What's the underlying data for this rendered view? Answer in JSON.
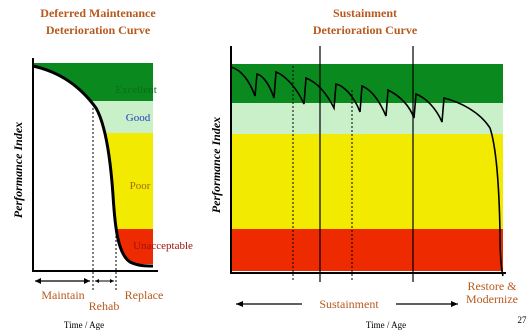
{
  "left": {
    "title_line1": "Deferred Maintenance",
    "title_line2": "Deterioration Curve",
    "yaxis": "Performance Index",
    "zones": {
      "excellent": "Excellent",
      "good": "Good",
      "poor": "Poor",
      "unacceptable": "Unacceptable"
    },
    "bottom": {
      "maintain": "Maintain",
      "rehab": "Rehab",
      "replace": "Replace",
      "time_age": "Time / Age"
    }
  },
  "right": {
    "title_line1": "Sustainment",
    "title_line2": "Deterioration Curve",
    "yaxis": "Performance Index",
    "bottom": {
      "restore_line1": "Restore &",
      "restore_line2": "Modernize",
      "sustainment": "Sustainment",
      "time_age": "Time / Age"
    }
  },
  "page_number": "27",
  "colors": {
    "excellent": "#0a8a1e",
    "good": "#c9f0c9",
    "poor": "#f2ea00",
    "unacceptable": "#ee2a00",
    "title": "#b8591e",
    "label_brown": "#b8591e",
    "label_green": "#0a6e14",
    "label_blue": "#1d3fbf",
    "label_red": "#a01010"
  }
}
